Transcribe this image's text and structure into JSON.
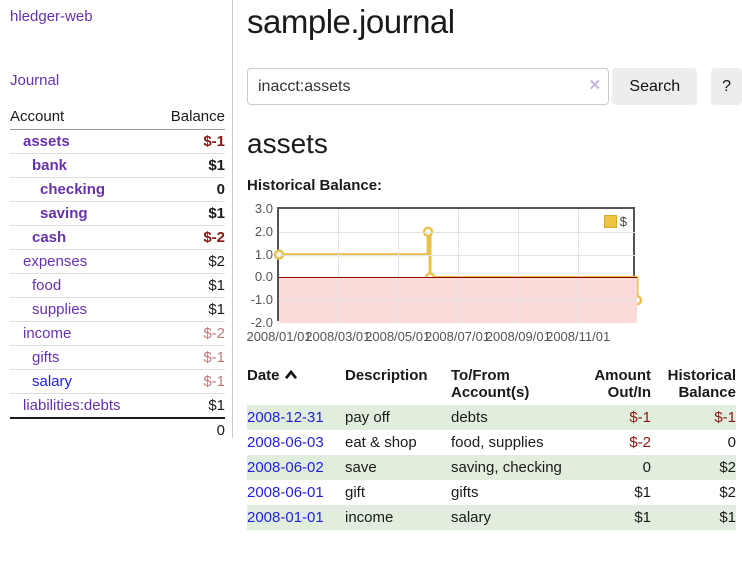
{
  "sidebar": {
    "brand": "hledger-web",
    "journal_link": "Journal",
    "accounts_table": {
      "col_account": "Account",
      "col_balance": "Balance",
      "rows": [
        {
          "name": "assets",
          "depth": 1,
          "em": true,
          "balance": "$-1",
          "neg": "strong",
          "unvisited": false
        },
        {
          "name": "bank",
          "depth": 2,
          "em": true,
          "balance": "$1",
          "neg": "none",
          "unvisited": false
        },
        {
          "name": "checking",
          "depth": 3,
          "em": true,
          "balance": "0",
          "neg": "none",
          "unvisited": false
        },
        {
          "name": "saving",
          "depth": 3,
          "em": true,
          "balance": "$1",
          "neg": "none",
          "unvisited": false
        },
        {
          "name": "cash",
          "depth": 2,
          "em": true,
          "balance": "$-2",
          "neg": "strong",
          "unvisited": false
        },
        {
          "name": "expenses",
          "depth": 1,
          "em": false,
          "balance": "$2",
          "neg": "none",
          "unvisited": false
        },
        {
          "name": "food",
          "depth": 2,
          "em": false,
          "balance": "$1",
          "neg": "none",
          "unvisited": false
        },
        {
          "name": "supplies",
          "depth": 2,
          "em": false,
          "balance": "$1",
          "neg": "none",
          "unvisited": false
        },
        {
          "name": "income",
          "depth": 1,
          "em": false,
          "balance": "$-2",
          "neg": "soft",
          "unvisited": false
        },
        {
          "name": "gifts",
          "depth": 2,
          "em": false,
          "balance": "$-1",
          "neg": "soft",
          "unvisited": false
        },
        {
          "name": "salary",
          "depth": 2,
          "em": false,
          "balance": "$-1",
          "neg": "soft",
          "unvisited": true
        },
        {
          "name": "liabilities:debts",
          "depth": 1,
          "em": false,
          "balance": "$1",
          "neg": "none",
          "unvisited": false
        }
      ],
      "total": "0"
    }
  },
  "header": {
    "title": "sample.journal"
  },
  "search": {
    "value": "inacct:assets",
    "clear_icon": "×",
    "button_label": "Search",
    "help_label": "?"
  },
  "account_page": {
    "title": "assets",
    "chart_label": "Historical Balance:"
  },
  "chart_data": {
    "type": "line",
    "title": "Historical Balance",
    "legend": [
      {
        "label": "$",
        "color": "#eec33f"
      }
    ],
    "ylim": [
      -2,
      3
    ],
    "xlim_days": [
      0,
      365
    ],
    "y_ticks": [
      {
        "label": "3.0",
        "value": 3
      },
      {
        "label": "2.0",
        "value": 2
      },
      {
        "label": "1.0",
        "value": 1
      },
      {
        "label": "0.0",
        "value": 0
      },
      {
        "label": "-1.0",
        "value": -1
      },
      {
        "label": "-2.0",
        "value": -2
      }
    ],
    "x_ticks": [
      {
        "label": "2008/01/01",
        "day": 0
      },
      {
        "label": "2008/03/01",
        "day": 60
      },
      {
        "label": "2008/05/01",
        "day": 121
      },
      {
        "label": "2008/07/01",
        "day": 182
      },
      {
        "label": "2008/09/01",
        "day": 244
      },
      {
        "label": "2008/11/01",
        "day": 305
      }
    ],
    "grid": true,
    "legend_position": "top-right",
    "negative_region": {
      "from": 0,
      "to": -2,
      "fill": "#fbdada",
      "line": "#8b0000"
    },
    "series": [
      {
        "name": "$",
        "color": "#e9c24d",
        "interpolation": "step-after",
        "points": [
          {
            "date": "2008-01-01",
            "day": 0,
            "value": 1
          },
          {
            "date": "2008-06-01",
            "day": 152,
            "value": 2
          },
          {
            "date": "2008-06-03",
            "day": 154,
            "value": 0
          },
          {
            "date": "2008-12-31",
            "day": 365,
            "value": -1
          }
        ]
      }
    ]
  },
  "transactions": {
    "columns": {
      "date": "Date",
      "description": "Description",
      "tofrom": "To/From Account(s)",
      "amount": "Amount Out/In",
      "balance": "Historical Balance"
    },
    "sort": {
      "column": "date",
      "direction": "ascending"
    },
    "rows": [
      {
        "date": "2008-12-31",
        "description": "pay off",
        "accounts": "debts",
        "amount": "$-1",
        "balance": "$-1",
        "amount_neg": true,
        "balance_neg": true
      },
      {
        "date": "2008-06-03",
        "description": "eat & shop",
        "accounts": "food, supplies",
        "amount": "$-2",
        "balance": "0",
        "amount_neg": true,
        "balance_neg": false
      },
      {
        "date": "2008-06-02",
        "description": "save",
        "accounts": "saving, checking",
        "amount": "0",
        "balance": "$2",
        "amount_neg": false,
        "balance_neg": false
      },
      {
        "date": "2008-06-01",
        "description": "gift",
        "accounts": "gifts",
        "amount": "$1",
        "balance": "$2",
        "amount_neg": false,
        "balance_neg": false
      },
      {
        "date": "2008-01-01",
        "description": "income",
        "accounts": "salary",
        "amount": "$1",
        "balance": "$1",
        "amount_neg": false,
        "balance_neg": false
      }
    ]
  }
}
